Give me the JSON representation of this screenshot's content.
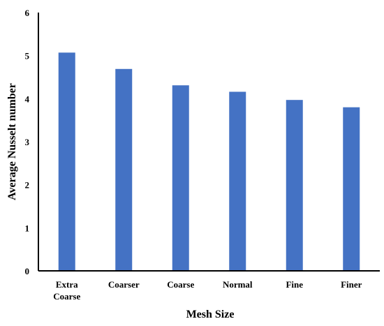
{
  "chart_data": {
    "type": "bar",
    "categories": [
      [
        "Extra",
        "Coarse"
      ],
      [
        "Coarser"
      ],
      [
        "Coarse"
      ],
      [
        "Normal"
      ],
      [
        "Fine"
      ],
      [
        "Finer"
      ]
    ],
    "values": [
      5.07,
      4.69,
      4.31,
      4.16,
      3.97,
      3.8
    ],
    "xlabel": "Mesh Size",
    "ylabel": "Average Nusselt number",
    "ylim": [
      0,
      6
    ],
    "yticks": [
      0,
      1,
      2,
      3,
      4,
      5,
      6
    ],
    "grid": false,
    "bar_color": "#4472c4",
    "axis_color": "#000000"
  }
}
